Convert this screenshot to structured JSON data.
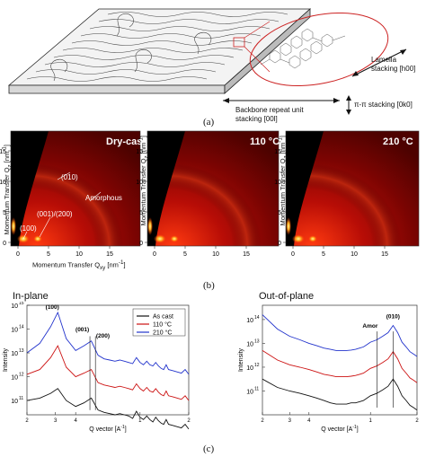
{
  "panel_a": {
    "label": "(a)",
    "lamella": "Lamella",
    "lamella_stacking": "stacking [h00]",
    "backbone": "Backbone repeat unit",
    "backbone_stacking": "stacking [00l]",
    "pipi": "π-π stacking [0k0]"
  },
  "panel_b": {
    "label": "(b)",
    "maps": [
      {
        "title": "Dry-cast"
      },
      {
        "title": "110 °C"
      },
      {
        "title": "210 °C"
      }
    ],
    "ylabel": "Momentum Transfer Q",
    "ylabel_sub": "z",
    "ylabel_unit": "[nm",
    "ylabel_sup": "-1",
    "ylabel_end": "]",
    "xlabel": "Momentum Transfer Q",
    "xlabel_sub": "xy",
    "xlabel_unit": " [nm",
    "xlabel_sup": "-1",
    "xlabel_end": "]",
    "yticks": [
      "0",
      "5",
      "10",
      "15"
    ],
    "xticks": [
      "0",
      "5",
      "10",
      "15"
    ],
    "annotations": [
      "(010)",
      "Amorphous",
      "(001)/(200)",
      "(100)"
    ]
  },
  "panel_c": {
    "label": "(c)",
    "chart_data": [
      {
        "type": "line",
        "title": "In-plane",
        "xlabel": "Q vector [A",
        "xlabel_sup": "-1",
        "xlabel_end": "]",
        "ylabel": "Intensity",
        "yticks": [
          "10",
          "10",
          "10",
          "10",
          "10"
        ],
        "ytick_exponents": [
          "11",
          "12",
          "13",
          "14",
          "15"
        ],
        "xticks": [
          "2",
          "3",
          "4",
          "1",
          "2"
        ],
        "peaks": [
          "(100)",
          "(001)",
          "(200)"
        ],
        "legend": [
          "As cast",
          "110 °C",
          "210 °C"
        ],
        "series": [
          {
            "name": "As cast",
            "color": "#111111",
            "x": [
              0.2,
              0.24,
              0.28,
              0.31,
              0.35,
              0.4,
              0.45,
              0.5,
              0.55,
              0.6,
              0.65,
              0.7,
              0.75,
              0.8,
              0.85,
              0.9,
              0.95,
              1.0,
              1.05,
              1.1,
              1.15,
              1.2,
              1.25,
              1.3,
              1.35,
              1.4,
              1.45,
              1.5,
              1.6,
              1.7,
              1.8,
              1.9,
              2.0
            ],
            "y": [
              11.0,
              11.1,
              11.3,
              11.5,
              11.0,
              10.75,
              10.9,
              11.1,
              10.6,
              10.5,
              10.45,
              10.4,
              10.45,
              10.4,
              10.35,
              10.25,
              10.55,
              10.3,
              10.2,
              10.35,
              10.2,
              10.1,
              10.3,
              10.15,
              10.05,
              10.0,
              10.2,
              10.0,
              9.95,
              9.9,
              9.85,
              10.0,
              9.8
            ]
          },
          {
            "name": "110 °C",
            "color": "#cc1111",
            "x": [
              0.2,
              0.24,
              0.28,
              0.31,
              0.35,
              0.4,
              0.45,
              0.5,
              0.55,
              0.6,
              0.65,
              0.7,
              0.75,
              0.8,
              0.85,
              0.9,
              0.95,
              1.0,
              1.05,
              1.1,
              1.15,
              1.2,
              1.25,
              1.3,
              1.35,
              1.4,
              1.45,
              1.5,
              1.6,
              1.7,
              1.8,
              1.9,
              2.0
            ],
            "y": [
              12.1,
              12.3,
              12.8,
              13.3,
              12.4,
              12.0,
              12.15,
              12.3,
              11.75,
              11.65,
              11.6,
              11.55,
              11.6,
              11.55,
              11.5,
              11.45,
              11.7,
              11.5,
              11.4,
              11.55,
              11.4,
              11.35,
              11.5,
              11.35,
              11.25,
              11.2,
              11.4,
              11.2,
              11.15,
              11.1,
              11.05,
              11.2,
              11.0
            ]
          },
          {
            "name": "210 °C",
            "color": "#2233cc",
            "x": [
              0.2,
              0.24,
              0.28,
              0.31,
              0.35,
              0.4,
              0.45,
              0.5,
              0.55,
              0.6,
              0.65,
              0.7,
              0.75,
              0.8,
              0.85,
              0.9,
              0.95,
              1.0,
              1.05,
              1.1,
              1.15,
              1.2,
              1.25,
              1.3,
              1.35,
              1.4,
              1.45,
              1.5,
              1.6,
              1.7,
              1.8,
              1.9,
              2.0
            ],
            "y": [
              13.0,
              13.4,
              14.1,
              14.7,
              13.6,
              13.1,
              13.3,
              13.5,
              12.9,
              12.75,
              12.7,
              12.65,
              12.7,
              12.65,
              12.6,
              12.55,
              12.8,
              12.6,
              12.5,
              12.65,
              12.5,
              12.45,
              12.6,
              12.45,
              12.35,
              12.3,
              12.5,
              12.3,
              12.25,
              12.2,
              12.15,
              12.3,
              12.1
            ]
          }
        ]
      },
      {
        "type": "line",
        "title": "Out-of-plane",
        "xlabel": "Q vector [A",
        "xlabel_sup": "-1",
        "xlabel_end": "]",
        "ylabel": "Intensity",
        "yticks": [
          "10",
          "10",
          "10",
          "10"
        ],
        "ytick_exponents": [
          "11",
          "12",
          "13",
          "14"
        ],
        "xticks": [
          "2",
          "3",
          "4",
          "1",
          "2"
        ],
        "peaks": [
          "Amor",
          "(010)"
        ],
        "series": [
          {
            "name": "",
            "color": "#111111",
            "x": [
              0.2,
              0.25,
              0.3,
              0.35,
              0.4,
              0.45,
              0.5,
              0.55,
              0.6,
              0.65,
              0.7,
              0.75,
              0.8,
              0.85,
              0.9,
              0.95,
              1.0,
              1.1,
              1.2,
              1.3,
              1.4,
              1.5,
              1.6,
              1.7,
              1.8,
              1.9,
              2.0
            ],
            "y": [
              11.5,
              11.15,
              11.0,
              10.9,
              10.8,
              10.7,
              10.6,
              10.5,
              10.45,
              10.45,
              10.45,
              10.5,
              10.5,
              10.55,
              10.6,
              10.7,
              10.8,
              10.9,
              11.05,
              11.2,
              11.5,
              11.2,
              10.8,
              10.6,
              10.4,
              10.3,
              10.2
            ]
          },
          {
            "name": "",
            "color": "#cc1111",
            "x": [
              0.2,
              0.25,
              0.3,
              0.35,
              0.4,
              0.45,
              0.5,
              0.55,
              0.6,
              0.65,
              0.7,
              0.75,
              0.8,
              0.85,
              0.9,
              0.95,
              1.0,
              1.1,
              1.2,
              1.3,
              1.4,
              1.5,
              1.6,
              1.7,
              1.8,
              1.9,
              2.0
            ],
            "y": [
              12.7,
              12.3,
              12.1,
              12.0,
              11.9,
              11.8,
              11.7,
              11.65,
              11.6,
              11.6,
              11.6,
              11.62,
              11.65,
              11.7,
              11.75,
              11.85,
              11.95,
              12.05,
              12.2,
              12.35,
              12.65,
              12.35,
              11.95,
              11.75,
              11.55,
              11.45,
              11.35
            ]
          },
          {
            "name": "",
            "color": "#2233cc",
            "x": [
              0.2,
              0.25,
              0.3,
              0.35,
              0.4,
              0.45,
              0.5,
              0.55,
              0.6,
              0.65,
              0.7,
              0.75,
              0.8,
              0.85,
              0.9,
              0.95,
              1.0,
              1.1,
              1.2,
              1.3,
              1.4,
              1.5,
              1.6,
              1.7,
              1.8,
              1.9,
              2.0
            ],
            "y": [
              14.2,
              13.6,
              13.3,
              13.15,
              13.0,
              12.9,
              12.8,
              12.75,
              12.7,
              12.7,
              12.7,
              12.72,
              12.75,
              12.8,
              12.85,
              12.95,
              13.05,
              13.15,
              13.3,
              13.45,
              13.75,
              13.45,
              13.05,
              12.85,
              12.65,
              12.55,
              12.45
            ]
          }
        ]
      }
    ]
  }
}
